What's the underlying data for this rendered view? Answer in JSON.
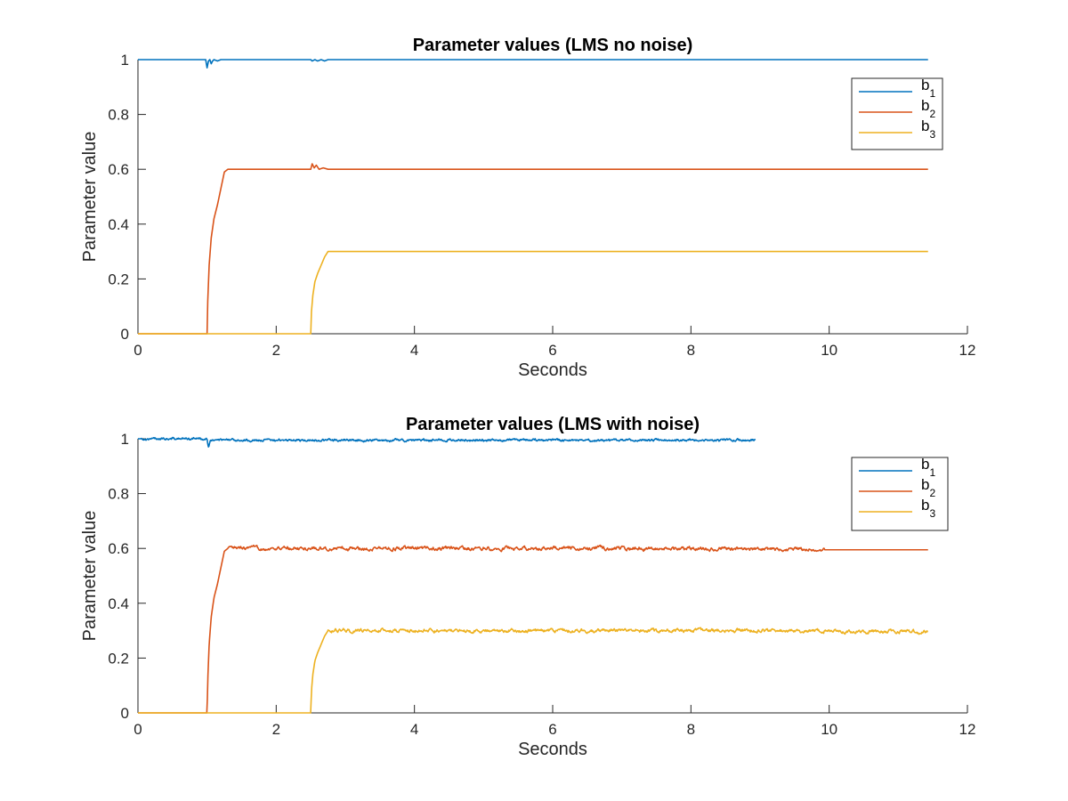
{
  "chart_data": [
    {
      "type": "line",
      "title": "Parameter values (LMS no noise)",
      "xlabel": "Seconds",
      "ylabel": "Parameter value",
      "xlim": [
        0,
        12
      ],
      "ylim": [
        0,
        1
      ],
      "xticks": [
        "0",
        "2",
        "4",
        "6",
        "8",
        "10",
        "12"
      ],
      "yticks": [
        "0",
        "0.2",
        "0.4",
        "0.6",
        "0.8",
        "1"
      ],
      "legend_position": "top-right",
      "grid": false,
      "noise": 0,
      "series": [
        {
          "name": "b1",
          "base": "b",
          "subscript": "1",
          "color": "#0072BD",
          "x": [
            0,
            0.98,
            1.0,
            1.02,
            1.04,
            1.06,
            1.08,
            1.1,
            1.15,
            1.2,
            1.3,
            2.5,
            2.52,
            2.56,
            2.6,
            2.65,
            2.7,
            2.75,
            11.43
          ],
          "y": [
            1,
            1,
            0.97,
            0.995,
            1,
            0.985,
            0.995,
            1,
            0.995,
            1,
            1,
            1,
            0.995,
            1,
            0.995,
            1,
            0.995,
            1,
            1
          ]
        },
        {
          "name": "b2",
          "base": "b",
          "subscript": "2",
          "color": "#D95319",
          "x": [
            0,
            1.0,
            1.01,
            1.03,
            1.06,
            1.1,
            1.15,
            1.2,
            1.25,
            1.3,
            2.5,
            2.52,
            2.55,
            2.58,
            2.62,
            2.68,
            2.75,
            11.43
          ],
          "y": [
            0,
            0,
            0.12,
            0.25,
            0.35,
            0.42,
            0.47,
            0.53,
            0.59,
            0.6,
            0.6,
            0.62,
            0.605,
            0.615,
            0.6,
            0.605,
            0.6,
            0.6
          ]
        },
        {
          "name": "b3",
          "base": "b",
          "subscript": "3",
          "color": "#EDB120",
          "x": [
            0,
            2.5,
            2.51,
            2.53,
            2.56,
            2.6,
            2.65,
            2.7,
            2.75,
            11.43
          ],
          "y": [
            0,
            0,
            0.08,
            0.14,
            0.19,
            0.22,
            0.25,
            0.28,
            0.3,
            0.3
          ]
        }
      ]
    },
    {
      "type": "line",
      "title": "Parameter values (LMS with noise)",
      "xlabel": "Seconds",
      "ylabel": "Parameter value",
      "xlim": [
        0,
        12
      ],
      "ylim": [
        0,
        1
      ],
      "xticks": [
        "0",
        "2",
        "4",
        "6",
        "8",
        "10",
        "12"
      ],
      "yticks": [
        "0",
        "0.2",
        "0.4",
        "0.6",
        "0.8",
        "1"
      ],
      "legend_position": "top-right",
      "grid": false,
      "noise": 1,
      "series": [
        {
          "name": "b1",
          "base": "b",
          "subscript": "1",
          "color": "#0072BD",
          "x": [
            0,
            1.0,
            1.02,
            1.05,
            2.0,
            3.0,
            4.0,
            5.0,
            6.0,
            7.0,
            8.0,
            8.93
          ],
          "y": [
            1,
            1,
            0.97,
            0.995,
            0.995,
            0.995,
            0.995,
            0.995,
            0.995,
            0.995,
            0.995,
            0.995
          ],
          "noise_until": 8.93,
          "noise_amp": 0.006
        },
        {
          "name": "b2",
          "base": "b",
          "subscript": "2",
          "color": "#D95319",
          "x": [
            0,
            1.0,
            1.01,
            1.03,
            1.06,
            1.1,
            1.15,
            1.2,
            1.25,
            1.3,
            2.5,
            4.0,
            6.0,
            8.0,
            9.93,
            11.43
          ],
          "y": [
            0,
            0,
            0.12,
            0.25,
            0.35,
            0.42,
            0.47,
            0.53,
            0.59,
            0.6,
            0.6,
            0.6,
            0.6,
            0.6,
            0.595,
            0.595
          ],
          "noise_until": 9.93,
          "noise_amp": 0.01
        },
        {
          "name": "b3",
          "base": "b",
          "subscript": "3",
          "color": "#EDB120",
          "x": [
            0,
            2.5,
            2.51,
            2.53,
            2.56,
            2.6,
            2.65,
            2.7,
            2.75,
            4.0,
            6.0,
            8.0,
            10.0,
            11.43
          ],
          "y": [
            0,
            0,
            0.08,
            0.14,
            0.19,
            0.22,
            0.25,
            0.28,
            0.3,
            0.3,
            0.3,
            0.3,
            0.3,
            0.295
          ],
          "noise_until": 11.43,
          "noise_amp": 0.01
        }
      ]
    }
  ]
}
